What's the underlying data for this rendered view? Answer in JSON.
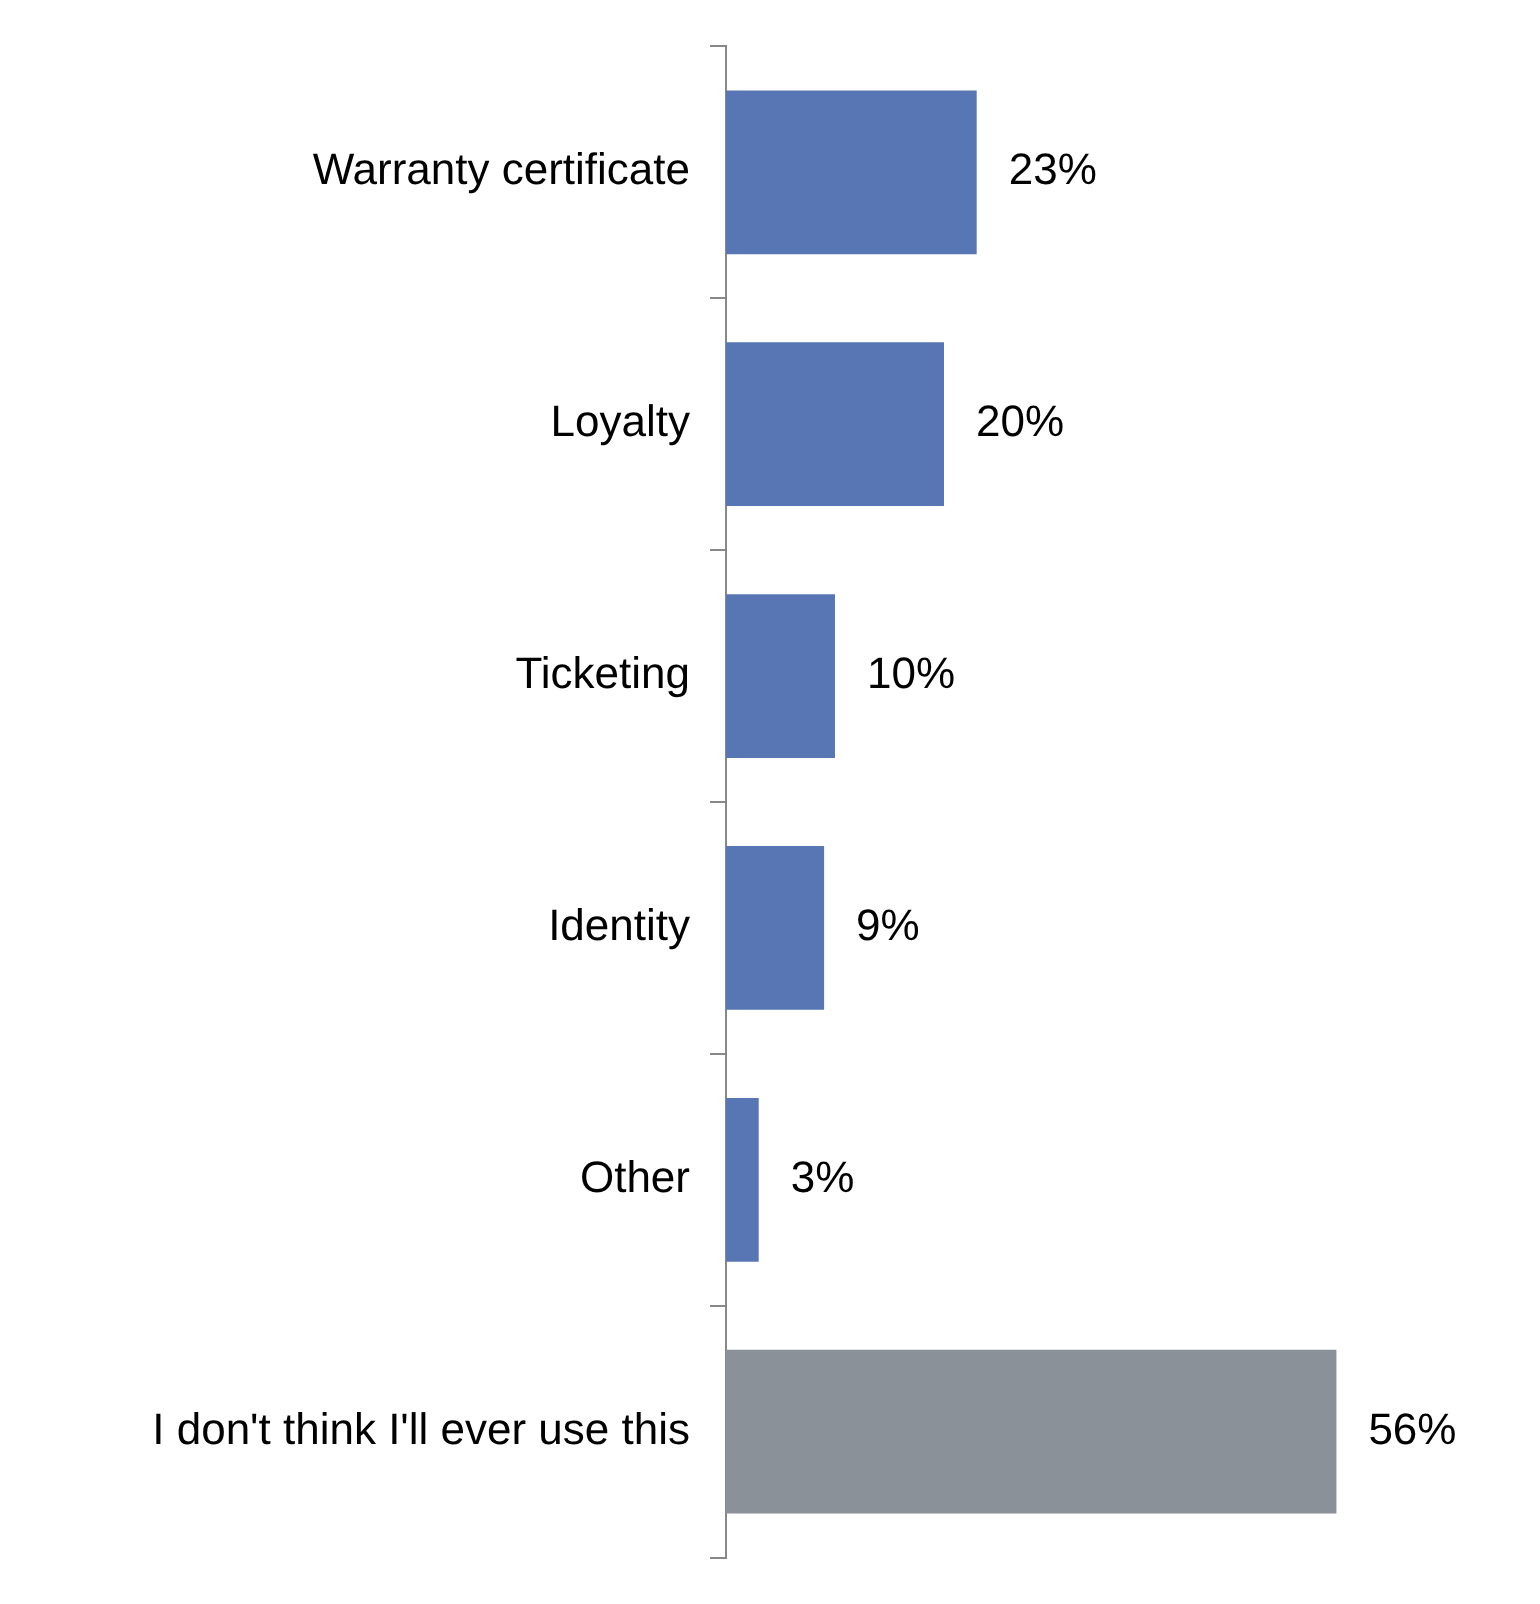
{
  "chart_data": {
    "type": "bar",
    "orientation": "horizontal",
    "categories": [
      "Warranty certificate",
      "Loyalty",
      "Ticketing",
      "Identity",
      "Other",
      "I don't think I'll ever use this"
    ],
    "values": [
      23,
      20,
      10,
      9,
      3,
      56
    ],
    "colors": [
      "#5876b4",
      "#5876b4",
      "#5876b4",
      "#5876b4",
      "#5876b4",
      "#8a9199"
    ],
    "value_labels": [
      "23%",
      "20%",
      "10%",
      "9%",
      "3%",
      "56%"
    ],
    "legend": false,
    "tick_labels": "y"
  }
}
